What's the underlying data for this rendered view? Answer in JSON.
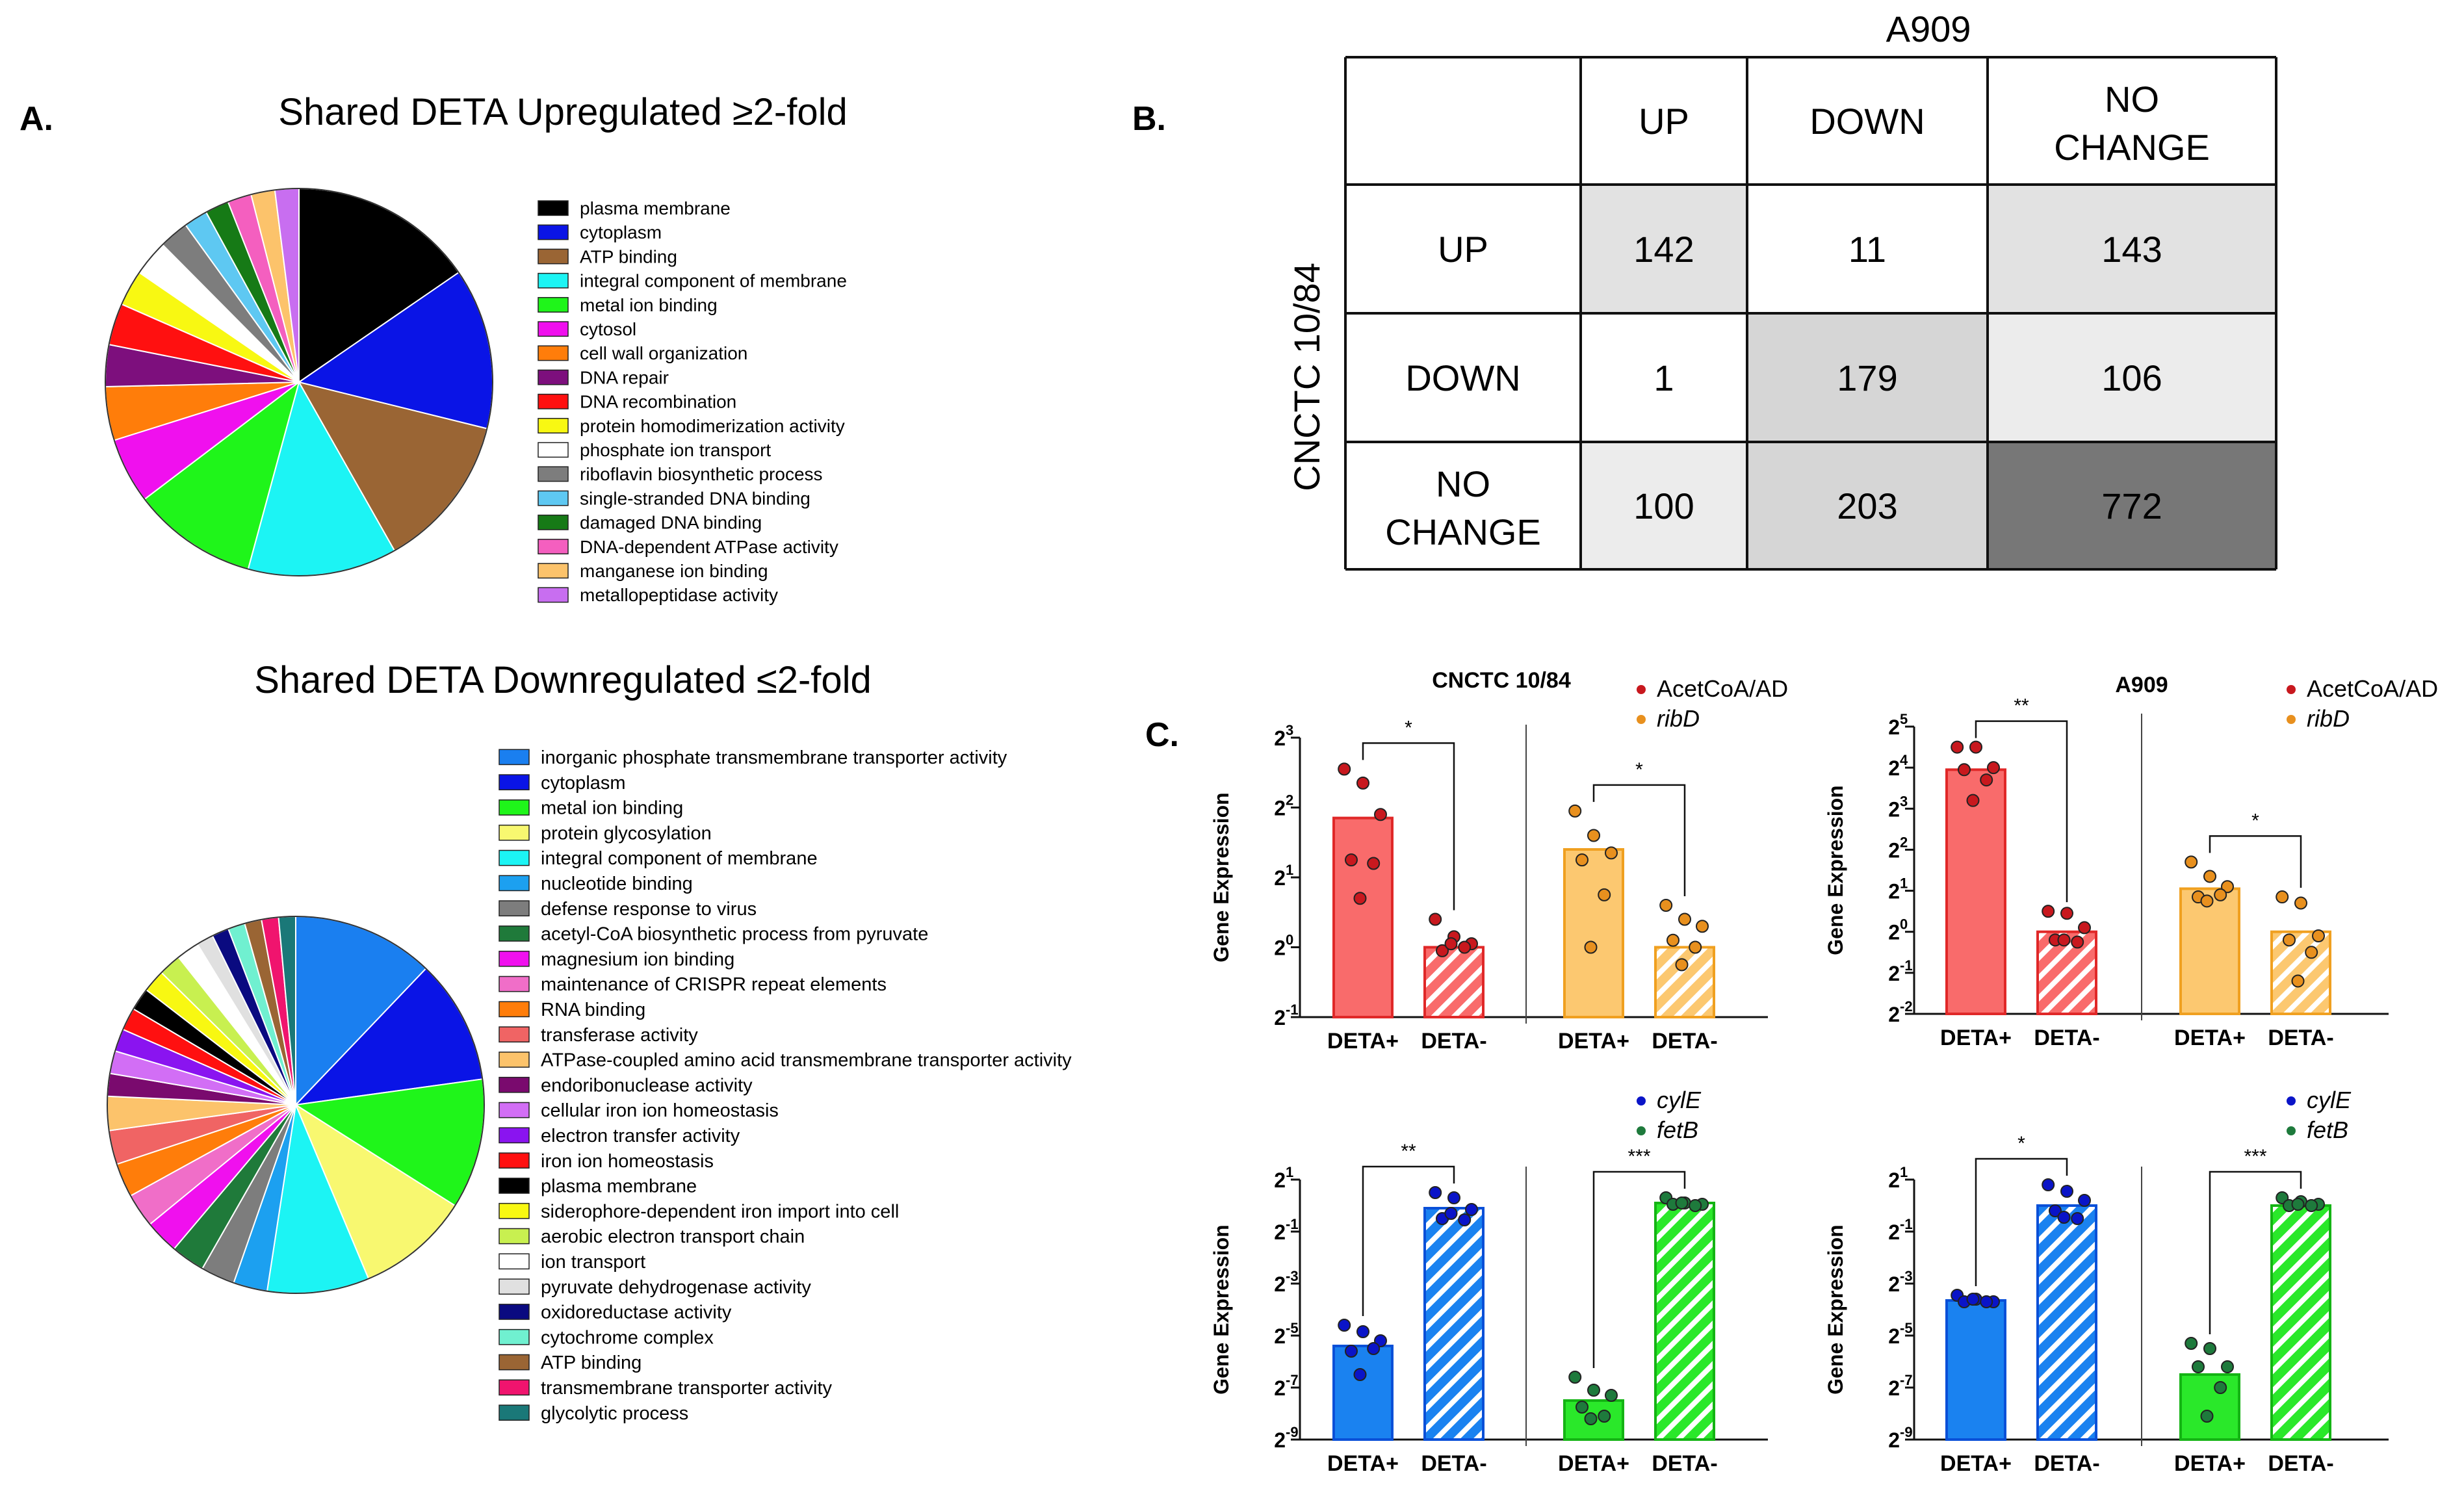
{
  "panel_labels": {
    "a": "A.",
    "b": "B.",
    "c": "C."
  },
  "chart_data": [
    {
      "id": "pie_up",
      "type": "pie",
      "title": "Shared DETA Upregulated ≥2-fold",
      "labels": [
        "plasma membrane",
        "cytoplasm",
        "ATP binding",
        "integral component of membrane",
        "metal ion binding",
        "cytosol",
        "cell wall organization",
        "DNA repair",
        "DNA recombination",
        "protein homodimerization activity",
        "phosphate ion transport",
        "riboflavin biosynthetic process",
        "single-stranded DNA binding",
        "damaged DNA binding",
        "DNA-dependent ATPase activity",
        "manganese ion binding",
        "metallopeptidase activity"
      ],
      "values": [
        15.5,
        13.5,
        13,
        12.5,
        10.5,
        5.5,
        4.5,
        3.5,
        3.5,
        3,
        3,
        2.5,
        2,
        2,
        2,
        2,
        2
      ],
      "colors": [
        "#000000",
        "#0a14e6",
        "#9a6534",
        "#1cf4f4",
        "#1ff51a",
        "#f010ee",
        "#ff7d0a",
        "#7d0f7d",
        "#ff1010",
        "#f8f812",
        "#ffffff",
        "#7d7d7d",
        "#5ec8f2",
        "#167a16",
        "#f45fbf",
        "#fcc36b",
        "#c86ef0"
      ]
    },
    {
      "id": "pie_down",
      "type": "pie",
      "title": "Shared DETA Downregulated ≤2-fold",
      "labels": [
        "inorganic phosphate transmembrane transporter activity",
        "cytoplasm",
        "metal ion binding",
        "protein glycosylation",
        "integral component of membrane",
        "nucleotide binding",
        "defense response to virus",
        "acetyl-CoA biosynthetic process from pyruvate",
        "magnesium ion binding",
        "maintenance of CRISPR repeat elements",
        "RNA binding",
        "transferase activity",
        "ATPase-coupled amino acid transmembrane transporter activity",
        "endoribonuclease activity",
        "cellular iron ion homeostasis",
        "electron transfer activity",
        "iron ion homeostasis",
        "plasma membrane",
        "siderophore-dependent iron import into cell",
        "aerobic electron transport chain",
        "ion transport",
        "pyruvate dehydrogenase activity",
        "oxidoreductase activity",
        "cytochrome complex",
        "ATP binding",
        "transmembrane transporter activity",
        "glycolytic process"
      ],
      "values": [
        12.5,
        11,
        11.5,
        10,
        9,
        3,
        3,
        3,
        3,
        3,
        3,
        3,
        3,
        2,
        2,
        2,
        2,
        2,
        2,
        2,
        2,
        1.5,
        1.5,
        1.5,
        1.5,
        1.5,
        1.5
      ],
      "colors": [
        "#1a7ff0",
        "#0a14e6",
        "#1ff51a",
        "#f8f870",
        "#1cf4f4",
        "#1ca0f0",
        "#7d7d7d",
        "#1f7a3a",
        "#f010ee",
        "#f06ec8",
        "#ff7d0a",
        "#f06464",
        "#fcc36b",
        "#7a0a6e",
        "#d26ef5",
        "#8a14f0",
        "#ff1010",
        "#000000",
        "#f8f812",
        "#c8f050",
        "#ffffff",
        "#e0e0e0",
        "#0a0a80",
        "#70f0d0",
        "#9a6534",
        "#f0146e",
        "#1a7878"
      ]
    },
    {
      "id": "table_b",
      "type": "table",
      "col_title": "A909",
      "row_title": "CNCTC 10/84",
      "col_headers": [
        "UP",
        "DOWN",
        "NO CHANGE"
      ],
      "rows": [
        {
          "label": "UP",
          "cells": [
            "142",
            "11",
            "143"
          ]
        },
        {
          "label": "DOWN",
          "cells": [
            "1",
            "179",
            "106"
          ]
        },
        {
          "label": "NO CHANGE",
          "cells": [
            "100",
            "203",
            "772"
          ]
        }
      ],
      "cell_colors": [
        [
          "#e2e2e2",
          "#ffffff",
          "#e2e2e2"
        ],
        [
          "#ffffff",
          "#d6d6d6",
          "#ececec"
        ],
        [
          "#ececec",
          "#d6d6d6",
          "#777777"
        ]
      ]
    },
    {
      "id": "bar_c1",
      "type": "bar",
      "title": "CNCTC 10/84",
      "ylabel": "Gene Expression",
      "yexp": [
        -1,
        0,
        1,
        2,
        3
      ],
      "ylim": [
        -1,
        3
      ],
      "legend": [
        {
          "label": "AcetCoA/AD",
          "color": "#c8181e",
          "italic": false
        },
        {
          "label": "ribD",
          "color": "#e8901e",
          "italic": true
        }
      ],
      "groups": [
        {
          "bars": [
            {
              "label": "DETA+",
              "value": 1.85,
              "fill": "#f96b6b",
              "edge": "#e02828",
              "hatched": false,
              "points": [
                2.55,
                2.35,
                1.9,
                1.25,
                1.2,
                0.7
              ]
            },
            {
              "label": "DETA-",
              "value": 0.0,
              "fill": "#f96b6b",
              "edge": "#e02828",
              "hatched": true,
              "points": [
                0.4,
                0.15,
                0.05,
                -0.05,
                0.0,
                0.05
              ]
            }
          ],
          "sig": "*",
          "point_color": "#c8181e"
        },
        {
          "bars": [
            {
              "label": "DETA+",
              "value": 1.4,
              "fill": "#fcc870",
              "edge": "#f0a020",
              "hatched": false,
              "points": [
                1.95,
                1.6,
                1.35,
                1.25,
                0.75,
                0.0
              ]
            },
            {
              "label": "DETA-",
              "value": 0.0,
              "fill": "#fcc870",
              "edge": "#f0a020",
              "hatched": true,
              "points": [
                0.6,
                0.4,
                0.3,
                0.1,
                0.0,
                -0.25
              ]
            }
          ],
          "sig": "*",
          "point_color": "#e8901e"
        }
      ]
    },
    {
      "id": "bar_c2",
      "type": "bar",
      "title": "A909",
      "ylabel": "Gene Expression",
      "yexp": [
        -2,
        -1,
        0,
        1,
        2,
        3,
        4,
        5
      ],
      "ylim": [
        -2,
        5
      ],
      "legend": [
        {
          "label": "AcetCoA/AD",
          "color": "#c8181e",
          "italic": false
        },
        {
          "label": "ribD",
          "color": "#e8901e",
          "italic": true
        }
      ],
      "groups": [
        {
          "bars": [
            {
              "label": "DETA+",
              "value": 3.95,
              "fill": "#f96b6b",
              "edge": "#e02828",
              "hatched": false,
              "points": [
                4.5,
                4.5,
                4.0,
                3.95,
                3.7,
                3.2
              ]
            },
            {
              "label": "DETA-",
              "value": 0.0,
              "fill": "#f96b6b",
              "edge": "#e02828",
              "hatched": true,
              "points": [
                0.5,
                0.45,
                0.1,
                -0.2,
                -0.25,
                -0.2
              ]
            }
          ],
          "sig": "**",
          "point_color": "#c8181e"
        },
        {
          "bars": [
            {
              "label": "DETA+",
              "value": 1.05,
              "fill": "#fcc870",
              "edge": "#f0a020",
              "hatched": false,
              "points": [
                1.7,
                1.35,
                1.1,
                0.85,
                0.9,
                0.75
              ]
            },
            {
              "label": "DETA-",
              "value": 0.0,
              "fill": "#fcc870",
              "edge": "#f0a020",
              "hatched": true,
              "points": [
                0.85,
                0.7,
                -0.1,
                -0.2,
                -0.5,
                -1.2
              ]
            }
          ],
          "sig": "*",
          "point_color": "#e8901e"
        }
      ]
    },
    {
      "id": "bar_c3",
      "type": "bar",
      "title": "",
      "ylabel": "Gene Expression",
      "yexp": [
        -9,
        -7,
        -5,
        -3,
        -1,
        1
      ],
      "ylim": [
        -9,
        1
      ],
      "legend": [
        {
          "label": "cylE",
          "color": "#0a14c8",
          "italic": true
        },
        {
          "label": "fetB",
          "color": "#1e7a3c",
          "italic": true
        }
      ],
      "groups": [
        {
          "bars": [
            {
              "label": "DETA+",
              "value": -5.4,
              "fill": "#1a82f0",
              "edge": "#0a50d8",
              "hatched": false,
              "points": [
                -4.6,
                -4.85,
                -5.2,
                -5.6,
                -5.5,
                -6.5
              ]
            },
            {
              "label": "DETA-",
              "value": -0.1,
              "fill": "#1a82f0",
              "edge": "#0a50d8",
              "hatched": true,
              "points": [
                0.5,
                0.3,
                -0.15,
                -0.5,
                -0.55,
                -0.3
              ]
            }
          ],
          "sig": "**",
          "point_color": "#0a14c8"
        },
        {
          "bars": [
            {
              "label": "DETA+",
              "value": -7.5,
              "fill": "#2ae82a",
              "edge": "#14b414",
              "hatched": false,
              "points": [
                -6.6,
                -7.1,
                -7.3,
                -7.75,
                -8.1,
                -8.2
              ]
            },
            {
              "label": "DETA-",
              "value": 0.1,
              "fill": "#2ae82a",
              "edge": "#14b414",
              "hatched": true,
              "points": [
                0.3,
                0.1,
                0.05,
                0.05,
                0.0,
                0.1
              ]
            }
          ],
          "sig": "***",
          "point_color": "#1e7a3c"
        }
      ]
    },
    {
      "id": "bar_c4",
      "type": "bar",
      "title": "",
      "ylabel": "Gene Expression",
      "yexp": [
        -9,
        -7,
        -5,
        -3,
        -1,
        1
      ],
      "ylim": [
        -9,
        1
      ],
      "legend": [
        {
          "label": "cylE",
          "color": "#0a14c8",
          "italic": true
        },
        {
          "label": "fetB",
          "color": "#1e7a3c",
          "italic": true
        }
      ],
      "groups": [
        {
          "bars": [
            {
              "label": "DETA+",
              "value": -3.65,
              "fill": "#1a82f0",
              "edge": "#0a50d8",
              "hatched": false,
              "points": [
                -3.45,
                -3.6,
                -3.7,
                -3.7,
                -3.7,
                -3.6
              ]
            },
            {
              "label": "DETA-",
              "value": 0.0,
              "fill": "#1a82f0",
              "edge": "#0a50d8",
              "hatched": true,
              "points": [
                0.8,
                0.55,
                0.2,
                -0.2,
                -0.5,
                -0.45
              ]
            }
          ],
          "sig": "*",
          "point_color": "#0a14c8"
        },
        {
          "bars": [
            {
              "label": "DETA+",
              "value": -6.5,
              "fill": "#2ae82a",
              "edge": "#14b414",
              "hatched": false,
              "points": [
                -5.3,
                -5.5,
                -6.2,
                -6.2,
                -7.0,
                -8.1
              ]
            },
            {
              "label": "DETA-",
              "value": 0.0,
              "fill": "#2ae82a",
              "edge": "#14b414",
              "hatched": true,
              "points": [
                0.3,
                0.15,
                0.05,
                0.0,
                0.0,
                0.05
              ]
            }
          ],
          "sig": "***",
          "point_color": "#1e7a3c"
        }
      ]
    }
  ]
}
